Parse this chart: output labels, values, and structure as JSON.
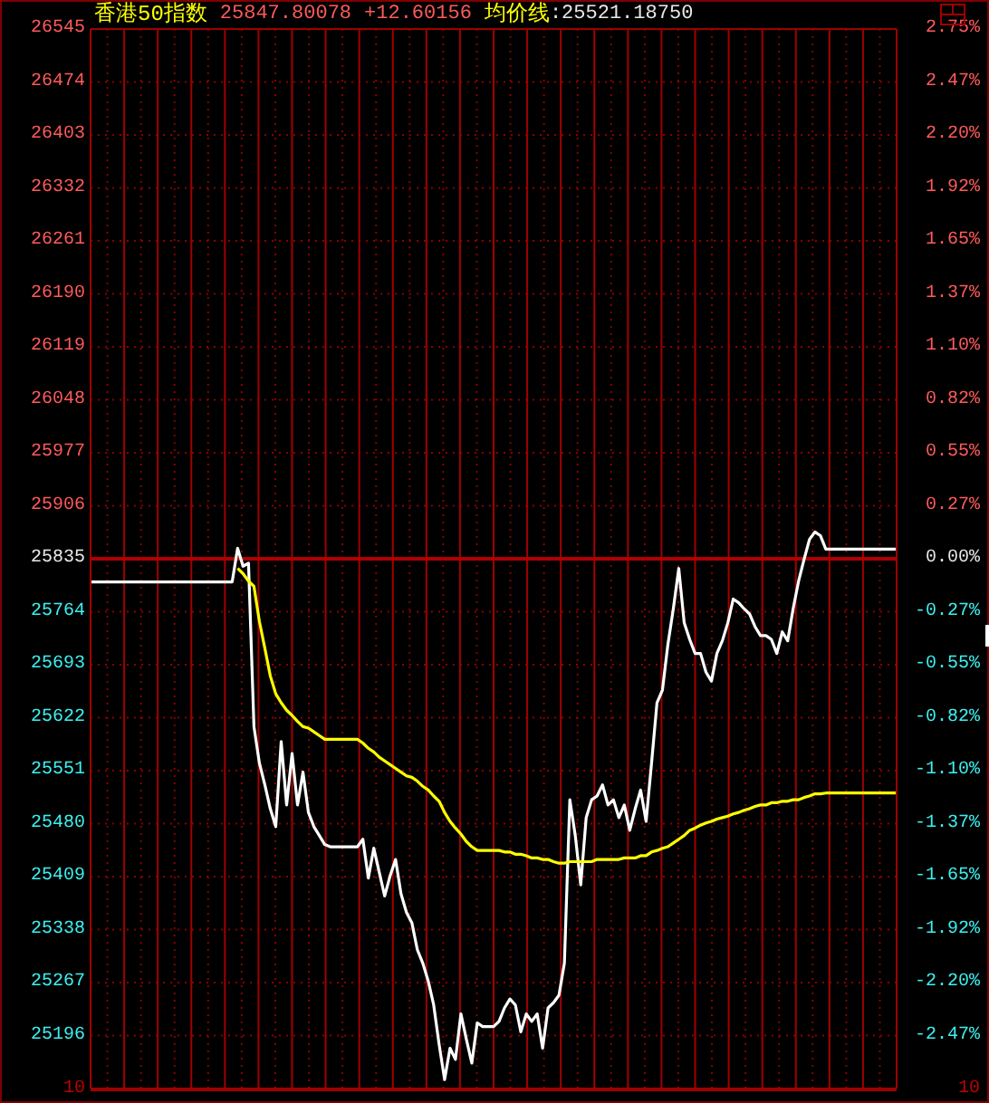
{
  "chart_data": {
    "type": "line",
    "title": "香港50指数",
    "annotations": [
      "25847.80078",
      "+12.60156",
      ":25521.18750",
      "10",
      "10"
    ],
    "categories": [
      null,
      null,
      null,
      null,
      null,
      null,
      null,
      null,
      null,
      null,
      null,
      null,
      null,
      null,
      null,
      null,
      null,
      null,
      null,
      null,
      null,
      null,
      null,
      null,
      null,
      null,
      null,
      null,
      null,
      null,
      null,
      null,
      null,
      null,
      null,
      null,
      null,
      null,
      null,
      null,
      null,
      null,
      null,
      null,
      null,
      null,
      null,
      null,
      null,
      null,
      null,
      null,
      null,
      null,
      null,
      null,
      null,
      null,
      null,
      null,
      null,
      null,
      null,
      null,
      null,
      null,
      null,
      null,
      null,
      null,
      null,
      null,
      null,
      null,
      null,
      null,
      null,
      null,
      null,
      null,
      null,
      null,
      null,
      null,
      null,
      null,
      null,
      null,
      null,
      null,
      null,
      null,
      null,
      null,
      null,
      null,
      null,
      null,
      null,
      null,
      null,
      null,
      null,
      null,
      null,
      null,
      null,
      null,
      null,
      null,
      null,
      null,
      null,
      null,
      null,
      null,
      null,
      null,
      null,
      null,
      null,
      null,
      null,
      null,
      null,
      null,
      null,
      null,
      null,
      null,
      null,
      null,
      null,
      null,
      null,
      null,
      null,
      null,
      null,
      null,
      null,
      null,
      null,
      null,
      null,
      null,
      null,
      null,
      null
    ],
    "series": [
      {
        "color": "#ffffff",
        "values": [
          25804,
          25804,
          25804,
          25804,
          25804,
          25804,
          25804,
          25804,
          25804,
          25804,
          25804,
          25804,
          25804,
          25804,
          25804,
          25804,
          25804,
          25804,
          25804,
          25804,
          25804,
          25804,
          25804,
          25804,
          25804,
          25804,
          25804,
          25849,
          25825,
          25829,
          25610,
          25561,
          25532,
          25500,
          25476,
          25590,
          25505,
          25574,
          25505,
          25549,
          25495,
          25476,
          25464,
          25452,
          25449,
          25449,
          25449,
          25449,
          25449,
          25449,
          25459,
          25407,
          25447,
          25415,
          25383,
          25410,
          25432,
          25386,
          25361,
          25347,
          25311,
          25293,
          25269,
          25237,
          25184,
          25137,
          25179,
          25164,
          25225,
          25191,
          25159,
          25213,
          25208,
          25208,
          25208,
          25215,
          25233,
          25245,
          25237,
          25201,
          25225,
          25215,
          25225,
          25179,
          25233,
          25240,
          25250,
          25293,
          25512,
          25464,
          25398,
          25488,
          25512,
          25517,
          25532,
          25505,
          25512,
          25488,
          25505,
          25471,
          25500,
          25525,
          25483,
          25561,
          25642,
          25659,
          25720,
          25768,
          25822,
          25749,
          25727,
          25708,
          25708,
          25683,
          25671,
          25708,
          25725,
          25749,
          25781,
          25776,
          25768,
          25761,
          25744,
          25732,
          25732,
          25727,
          25708,
          25737,
          25725,
          25768,
          25805,
          25834,
          25861,
          25871,
          25866,
          25848,
          25848,
          25848,
          25848,
          25848,
          25848,
          25848,
          25848,
          25848,
          25848,
          25848,
          25848,
          25848,
          25848
        ]
      },
      {
        "name": "均价线",
        "color": "#ffff00",
        "values": [
          null,
          null,
          null,
          null,
          null,
          null,
          null,
          null,
          null,
          null,
          null,
          null,
          null,
          null,
          null,
          null,
          null,
          null,
          null,
          null,
          null,
          null,
          null,
          null,
          null,
          null,
          null,
          25822,
          25815,
          25805,
          25798,
          25751,
          25715,
          25678,
          25654,
          25642,
          25632,
          25625,
          25617,
          25610,
          25608,
          25603,
          25598,
          25593,
          25593,
          25593,
          25593,
          25593,
          25593,
          25593,
          25588,
          25581,
          25576,
          25569,
          25564,
          25559,
          25554,
          25549,
          25544,
          25542,
          25537,
          25530,
          25525,
          25517,
          25510,
          25495,
          25483,
          25474,
          25466,
          25456,
          25449,
          25444,
          25444,
          25444,
          25444,
          25444,
          25442,
          25442,
          25439,
          25439,
          25437,
          25434,
          25434,
          25432,
          25432,
          25429,
          25427,
          25427,
          25429,
          25429,
          25429,
          25429,
          25429,
          25432,
          25432,
          25432,
          25432,
          25432,
          25434,
          25434,
          25434,
          25437,
          25437,
          25442,
          25444,
          25447,
          25449,
          25454,
          25459,
          25464,
          25471,
          25474,
          25478,
          25481,
          25483,
          25486,
          25488,
          25490,
          25493,
          25495,
          25498,
          25500,
          25503,
          25505,
          25505,
          25508,
          25508,
          25510,
          25510,
          25512,
          25512,
          25515,
          25517,
          25520,
          25520,
          25521,
          25521,
          25521,
          25521,
          25521,
          25521,
          25521,
          25521,
          25521,
          25521,
          25521,
          25521,
          25521,
          25521
        ]
      }
    ],
    "ylim": [
      25125,
      26545
    ],
    "yticks": [
      26545,
      26474,
      26403,
      26332,
      26261,
      26190,
      26119,
      26048,
      25977,
      25906,
      25835,
      25764,
      25693,
      25622,
      25551,
      25480,
      25409,
      25338,
      25267,
      25196
    ],
    "y2lim": [
      -2.75,
      2.75
    ],
    "y2ticks": [
      {
        "value": 2.75,
        "label": "2.75%"
      },
      {
        "value": 2.475,
        "label": "2.47%"
      },
      {
        "value": 2.2,
        "label": "2.20%"
      },
      {
        "value": 1.925,
        "label": "1.92%"
      },
      {
        "value": 1.65,
        "label": "1.65%"
      },
      {
        "value": 1.375,
        "label": "1.37%"
      },
      {
        "value": 1.1,
        "label": "1.10%"
      },
      {
        "value": 0.825,
        "label": "0.82%"
      },
      {
        "value": 0.55,
        "label": "0.55%"
      },
      {
        "value": 0.275,
        "label": "0.27%"
      },
      {
        "value": 0,
        "label": "0.00%"
      },
      {
        "value": -0.275,
        "label": "-0.27%"
      },
      {
        "value": -0.55,
        "label": "-0.55%"
      },
      {
        "value": -0.825,
        "label": "-0.82%"
      },
      {
        "value": -1.1,
        "label": "-1.10%"
      },
      {
        "value": -1.375,
        "label": "-1.37%"
      },
      {
        "value": -1.65,
        "label": "-1.65%"
      },
      {
        "value": -1.925,
        "label": "-1.92%"
      },
      {
        "value": -2.2,
        "label": "-2.20%"
      },
      {
        "value": -2.475,
        "label": "-2.47%"
      }
    ],
    "ref_lines": [
      {
        "axis": "y",
        "value": 25835,
        "color": "#b00000"
      }
    ],
    "grid": true,
    "legend": "top left"
  }
}
